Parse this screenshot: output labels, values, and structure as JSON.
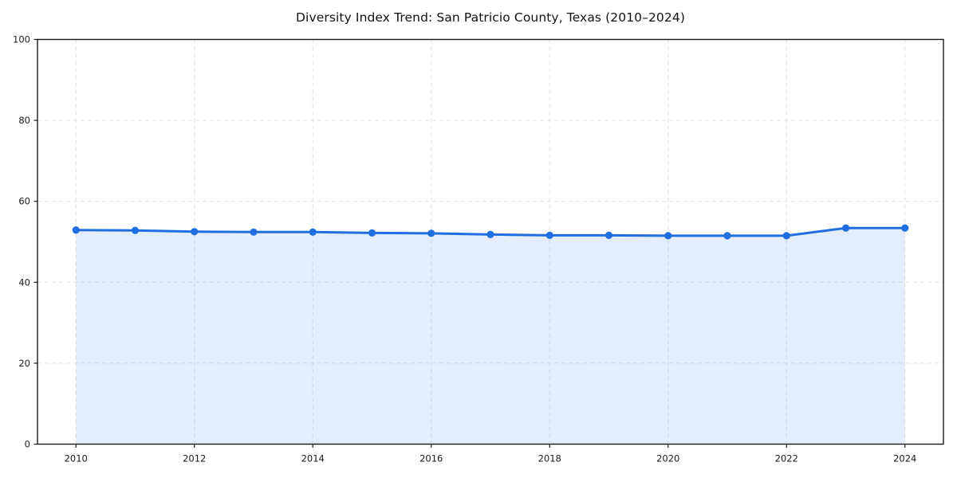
{
  "chart_data": {
    "type": "area",
    "title": "Diversity Index Trend: San Patricio County, Texas (2010–2024)",
    "xlabel": "",
    "ylabel": "",
    "x": [
      2010,
      2011,
      2012,
      2013,
      2014,
      2015,
      2016,
      2017,
      2018,
      2019,
      2020,
      2021,
      2022,
      2023,
      2024
    ],
    "series": [
      {
        "name": "Diversity Index",
        "values": [
          52.9,
          52.8,
          52.5,
          52.4,
          52.4,
          52.2,
          52.1,
          51.8,
          51.6,
          51.6,
          51.5,
          51.5,
          51.5,
          53.4,
          53.4
        ]
      }
    ],
    "xlim": [
      2009.35,
      2024.65
    ],
    "ylim": [
      0,
      100
    ],
    "x_ticks": [
      2010,
      2012,
      2014,
      2016,
      2018,
      2020,
      2022,
      2024
    ],
    "y_ticks": [
      0,
      20,
      40,
      60,
      80,
      100
    ],
    "grid": "dashed both axes",
    "legend_position": "none",
    "colors": {
      "line": "#1f6fe0",
      "marker": "#1f6fe0",
      "fill": "rgba(31,111,224,0.12)",
      "grid": "#e2e2e2",
      "spine": "#1a1a1a",
      "tick_text": "#1a1a1a",
      "background": "#ffffff"
    }
  }
}
